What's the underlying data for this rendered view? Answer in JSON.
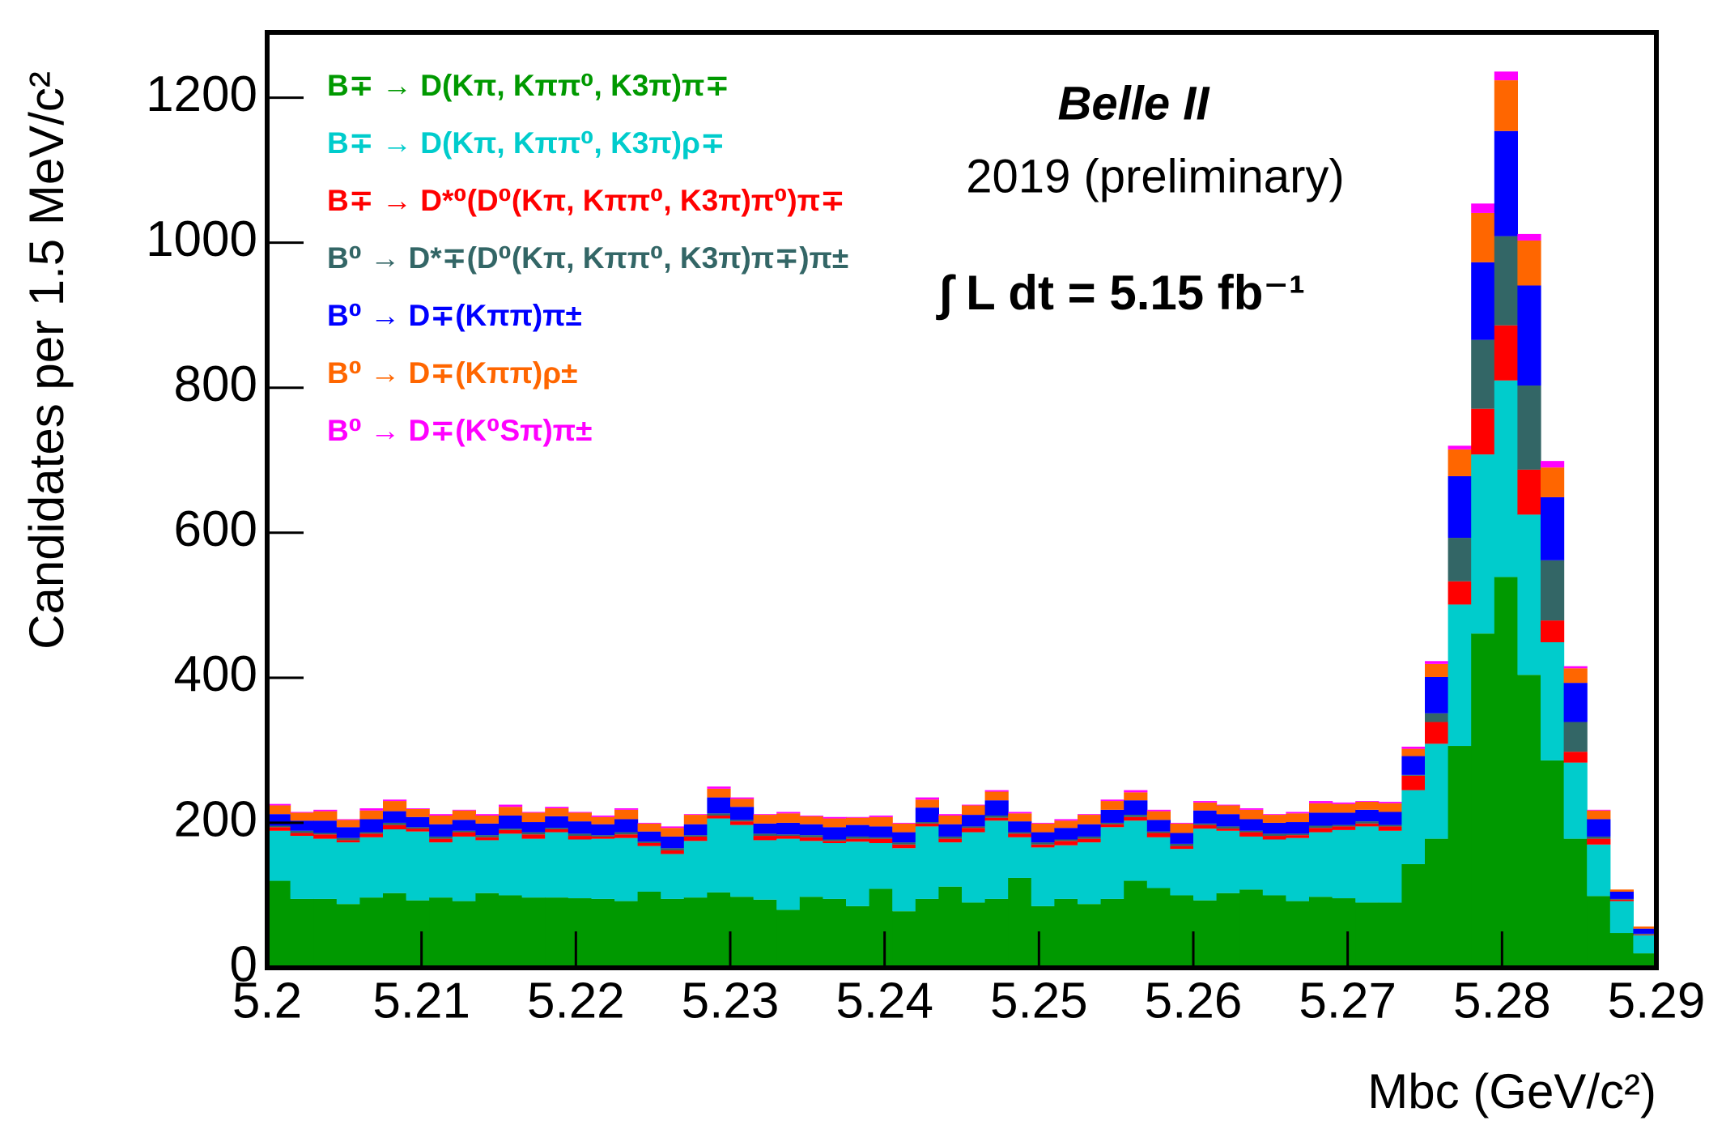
{
  "chart_data": {
    "type": "histogram",
    "title": "Belle II",
    "subtitle": "2019 (preliminary)",
    "annotation": "∫ L dt = 5.15 fb⁻¹",
    "x_label": "Mbc (GeV/c²)",
    "y_label": "Candidates per 1.5 MeV/c²",
    "stacked": true,
    "bins": [
      5.2,
      5.2015,
      5.203,
      5.2045,
      5.206,
      5.2075,
      5.209,
      5.2105,
      5.212,
      5.2135,
      5.215,
      5.2165,
      5.218,
      5.2195,
      5.221,
      5.2225,
      5.224,
      5.2255,
      5.227,
      5.2285,
      5.23,
      5.2315,
      5.233,
      5.2345,
      5.236,
      5.2375,
      5.239,
      5.2405,
      5.242,
      5.2435,
      5.245,
      5.2465,
      5.248,
      5.2495,
      5.251,
      5.2525,
      5.254,
      5.2555,
      5.257,
      5.2585,
      5.26,
      5.2615,
      5.263,
      5.2645,
      5.266,
      5.2675,
      5.269,
      5.2705,
      5.272,
      5.2735,
      5.275,
      5.2765,
      5.278,
      5.2795,
      5.281,
      5.2825,
      5.284,
      5.2855,
      5.287,
      5.2885,
      5.29
    ],
    "series": [
      {
        "name": "B∓ → D(Kπ, Kππ⁰, K3π)π∓",
        "color": "#009900",
        "values": [
          120,
          95,
          95,
          88,
          97,
          103,
          93,
          97,
          92,
          103,
          100,
          97,
          97,
          96,
          95,
          92,
          105,
          95,
          97,
          104,
          98,
          94,
          80,
          98,
          95,
          85,
          109,
          78,
          95,
          112,
          90,
          95,
          124,
          85,
          95,
          88,
          95,
          120,
          110,
          100,
          93,
          103,
          108,
          100,
          92,
          98,
          96,
          90,
          90,
          143,
          178,
          306,
          461,
          539,
          404,
          286,
          178,
          99,
          48,
          20
        ]
      },
      {
        "name": "B∓ → D(Kπ, Kππ⁰, K3π)ρ∓",
        "color": "#00cccc",
        "values": [
          69,
          87,
          83,
          85,
          83,
          88,
          95,
          76,
          89,
          73,
          85,
          81,
          90,
          81,
          83,
          87,
          63,
          62,
          78,
          102,
          99,
          82,
          98,
          77,
          77,
          89,
          63,
          87,
          100,
          61,
          97,
          108,
          56,
          81,
          74,
          85,
          99,
          83,
          70,
          64,
          99,
          86,
          73,
          77,
          87,
          89,
          94,
          105,
          99,
          102,
          131,
          195,
          247,
          271,
          221,
          163,
          105,
          71,
          44,
          25
        ]
      },
      {
        "name": "B∓ → D*⁰(D⁰(Kπ, Kππ⁰, K3π)π⁰)π∓",
        "color": "#ff0000",
        "values": [
          5,
          4,
          6,
          3,
          5,
          6,
          4,
          5,
          6,
          4,
          5,
          6,
          4,
          5,
          3,
          5,
          4,
          5,
          6,
          4,
          5,
          6,
          4,
          5,
          3,
          4,
          6,
          5,
          4,
          5,
          6,
          4,
          5,
          4,
          6,
          5,
          4,
          5,
          6,
          4,
          5,
          3,
          6,
          5,
          4,
          6,
          5,
          4,
          6,
          20,
          30,
          32,
          63,
          76,
          62,
          30,
          15,
          8,
          2,
          1
        ]
      },
      {
        "name": "B⁰ → D*∓(D⁰(Kπ, Kππ⁰, K3π)π∓)π±",
        "color": "#336666",
        "values": [
          2,
          3,
          2,
          3,
          2,
          3,
          2,
          3,
          2,
          3,
          2,
          3,
          2,
          3,
          2,
          3,
          2,
          3,
          2,
          3,
          2,
          3,
          2,
          3,
          2,
          3,
          2,
          3,
          2,
          3,
          2,
          3,
          2,
          3,
          2,
          3,
          2,
          3,
          2,
          3,
          2,
          3,
          2,
          3,
          2,
          3,
          2,
          3,
          2,
          1,
          12,
          60,
          95,
          123,
          116,
          83,
          41,
          3,
          1,
          1
        ]
      },
      {
        "name": "B⁰ → D∓(Kππ)π±",
        "color": "#0000ff",
        "values": [
          16,
          14,
          17,
          15,
          18,
          16,
          14,
          17,
          15,
          16,
          18,
          14,
          16,
          17,
          15,
          18,
          14,
          16,
          15,
          22,
          18,
          14,
          16,
          15,
          17,
          16,
          15,
          14,
          20,
          17,
          16,
          21,
          15,
          14,
          16,
          17,
          18,
          20,
          16,
          15,
          18,
          17,
          16,
          15,
          16,
          18,
          17,
          16,
          18,
          26,
          50,
          85,
          107,
          145,
          138,
          87,
          54,
          24,
          10,
          7
        ]
      },
      {
        "name": "B⁰ → D∓(Kππ)ρ±",
        "color": "#ff6600",
        "values": [
          12,
          11,
          13,
          10,
          12,
          14,
          11,
          12,
          13,
          11,
          12,
          13,
          11,
          12,
          10,
          13,
          11,
          12,
          13,
          12,
          11,
          12,
          13,
          11,
          12,
          10,
          13,
          12,
          11,
          12,
          13,
          12,
          11,
          12,
          10,
          13,
          12,
          11,
          12,
          13,
          11,
          12,
          13,
          11,
          12,
          13,
          12,
          11,
          12,
          10,
          18,
          37,
          68,
          70,
          62,
          41,
          20,
          12,
          3,
          3
        ]
      },
      {
        "name": "B⁰ → D∓(K⁰Sπ)π±",
        "color": "#ff00ff",
        "values": [
          2,
          1,
          2,
          1,
          3,
          2,
          1,
          2,
          1,
          2,
          3,
          1,
          2,
          1,
          2,
          2,
          1,
          2,
          1,
          3,
          2,
          1,
          2,
          1,
          2,
          1,
          2,
          1,
          3,
          2,
          1,
          2,
          2,
          1,
          2,
          1,
          2,
          3,
          2,
          1,
          2,
          1,
          2,
          1,
          2,
          3,
          2,
          1,
          2,
          3,
          4,
          5,
          13,
          12,
          9,
          9,
          3,
          1,
          0,
          0
        ]
      }
    ],
    "xlim": [
      5.2,
      5.29
    ],
    "xticks": [
      5.2,
      5.21,
      5.22,
      5.23,
      5.24,
      5.25,
      5.26,
      5.27,
      5.28,
      5.29
    ],
    "ylim": [
      0,
      1290
    ],
    "yticks": [
      0,
      200,
      400,
      600,
      800,
      1000,
      1200
    ],
    "grid": false,
    "legend": "top-left"
  }
}
